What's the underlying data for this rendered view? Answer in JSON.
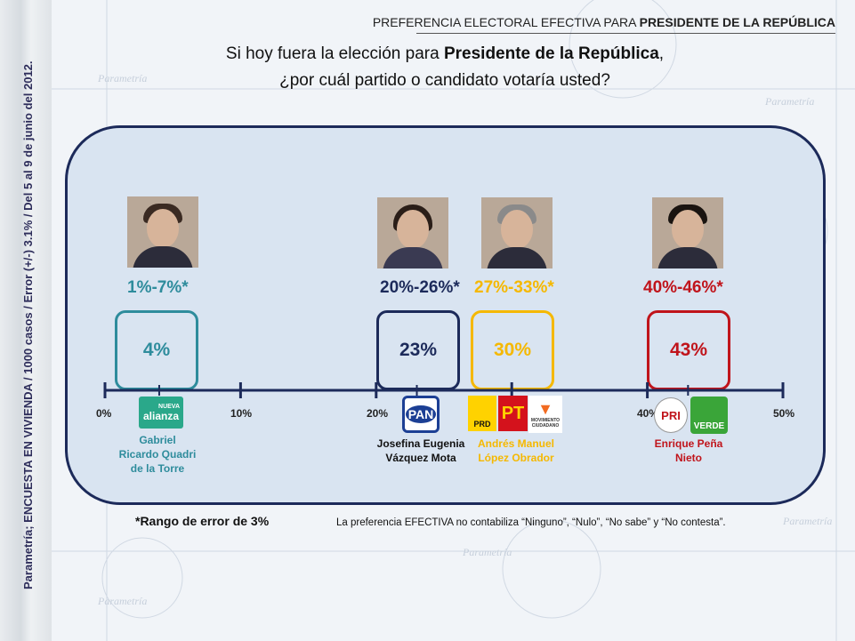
{
  "header": {
    "title_prefix": "PREFERENCIA ELECTORAL EFECTIVA PARA ",
    "title_bold": "PRESIDENTE DE LA REPÚBLICA"
  },
  "question": {
    "line1_prefix": "Si hoy fuera la elección para ",
    "line1_bold": "Presidente de la República",
    "line1_suffix": ",",
    "line2": "¿por cuál partido o candidato votaría usted?"
  },
  "side_note": "Parametría; ENCUESTA EN VIVIENDA / 1000 casos / Error (+/-) 3.1% / Del 5 al 9 de junio del 2012.",
  "watermark": {
    "word": "Parametría"
  },
  "footnotes": {
    "error_range": "*Rango de error de 3%",
    "effective_note": "La preferencia EFECTIVA no contabiliza “Ninguno”, “Nulo”, “No sabe” y “No contesta”."
  },
  "chart_data": {
    "type": "scatter",
    "title": "",
    "xlabel": "",
    "ylabel": "",
    "xlim": [
      0,
      50
    ],
    "x_ticks": [
      0,
      10,
      20,
      40,
      50
    ],
    "x_tick_labels": [
      "0%",
      "10%",
      "20%",
      "40%",
      "50%"
    ],
    "series": [
      {
        "name": "Gabriel Ricardo Quadri de la Torre",
        "name_lines": [
          "Gabriel",
          "Ricardo Quadri",
          "de la Torre"
        ],
        "value": 4,
        "value_label": "4%",
        "range": [
          1,
          7
        ],
        "range_label": "1%-7%*",
        "parties": [
          "NUEVA alianza"
        ],
        "color": "#2e8c9c"
      },
      {
        "name": "Josefina Eugenia Vázquez Mota",
        "name_lines": [
          "Josefina Eugenia",
          "Vázquez Mota"
        ],
        "value": 23,
        "value_label": "23%",
        "range": [
          20,
          26
        ],
        "range_label": "20%-26%*",
        "parties": [
          "PAN"
        ],
        "color": "#1c2a5a"
      },
      {
        "name": "Andrés Manuel López Obrador",
        "name_lines": [
          "Andrés Manuel",
          "López Obrador"
        ],
        "value": 30,
        "value_label": "30%",
        "range": [
          27,
          33
        ],
        "range_label": "27%-33%*",
        "parties": [
          "PRD",
          "PT",
          "MOVIMIENTO CIUDADANO"
        ],
        "color": "#f5b800"
      },
      {
        "name": "Enrique Peña Nieto",
        "name_lines": [
          "Enrique Peña",
          "Nieto"
        ],
        "value": 43,
        "value_label": "43%",
        "range": [
          40,
          46
        ],
        "range_label": "40%-46%*",
        "parties": [
          "PRI",
          "VERDE"
        ],
        "color": "#c0141b"
      }
    ],
    "legend": "none",
    "grid": false
  },
  "party_logos": {
    "alianza_top": "NUEVA",
    "alianza_bottom": "alianza",
    "pan": "PAN",
    "prd": "PRD",
    "pt": "PT",
    "mc": "MOVIMIENTO CIUDADANO",
    "pri": "PRI",
    "verde": "VERDE"
  },
  "colors": {
    "panel_bg": "#d9e4f1",
    "panel_border": "#1c2a5a",
    "axis": "#1c2a5a"
  }
}
